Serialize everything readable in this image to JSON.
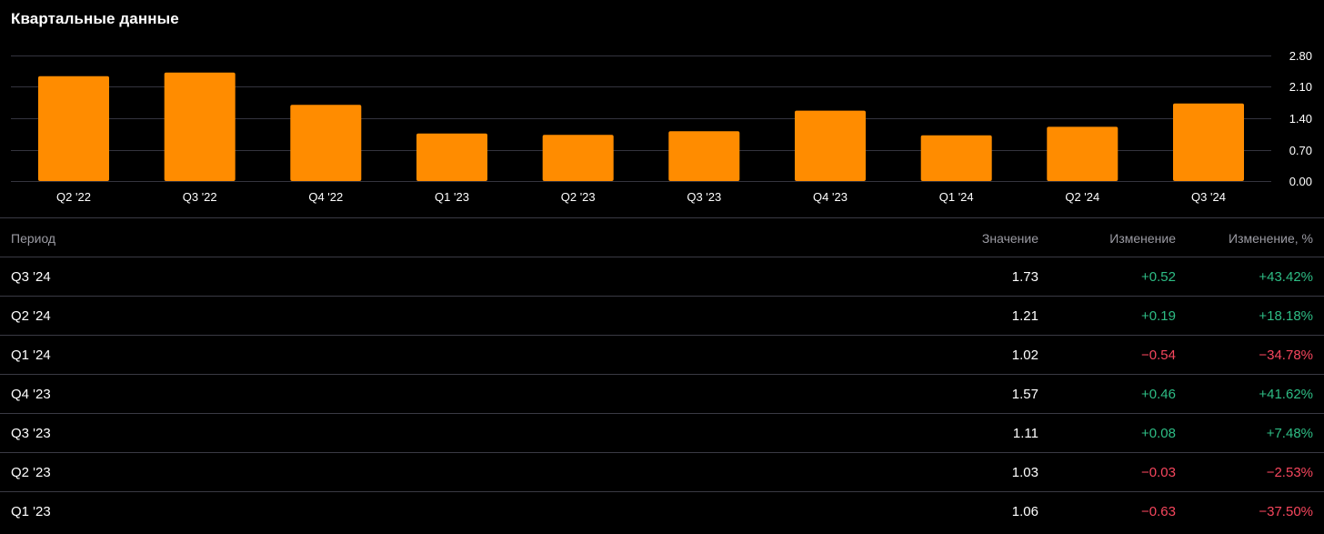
{
  "title": "Квартальные данные",
  "colors": {
    "bar": "#ff8c00",
    "grid": "#34343e",
    "axis_text": "#ffffff",
    "positive": "#2ebd85",
    "negative": "#f6465d"
  },
  "chart_data": {
    "type": "bar",
    "categories": [
      "Q2 '22",
      "Q3 '22",
      "Q4 '22",
      "Q1 '23",
      "Q2 '23",
      "Q3 '23",
      "Q4 '23",
      "Q1 '24",
      "Q2 '24",
      "Q3 '24"
    ],
    "values": [
      2.34,
      2.42,
      1.7,
      1.06,
      1.03,
      1.11,
      1.57,
      1.02,
      1.21,
      1.73
    ],
    "ylim": [
      0,
      2.8
    ],
    "yticks": [
      "0.00",
      "0.70",
      "1.40",
      "2.10",
      "2.80"
    ],
    "ytick_values": [
      0,
      0.7,
      1.4,
      2.1,
      2.8
    ],
    "grid": true,
    "y_axis_side": "right"
  },
  "table": {
    "headers": {
      "period": "Период",
      "value": "Значение",
      "change": "Изменение",
      "change_pct": "Изменение, %"
    },
    "rows": [
      {
        "period": "Q3 '24",
        "value": "1.73",
        "change": "+0.52",
        "change_pct": "+43.42%",
        "dir": "pos"
      },
      {
        "period": "Q2 '24",
        "value": "1.21",
        "change": "+0.19",
        "change_pct": "+18.18%",
        "dir": "pos"
      },
      {
        "period": "Q1 '24",
        "value": "1.02",
        "change": "−0.54",
        "change_pct": "−34.78%",
        "dir": "neg"
      },
      {
        "period": "Q4 '23",
        "value": "1.57",
        "change": "+0.46",
        "change_pct": "+41.62%",
        "dir": "pos"
      },
      {
        "period": "Q3 '23",
        "value": "1.11",
        "change": "+0.08",
        "change_pct": "+7.48%",
        "dir": "pos"
      },
      {
        "period": "Q2 '23",
        "value": "1.03",
        "change": "−0.03",
        "change_pct": "−2.53%",
        "dir": "neg"
      },
      {
        "period": "Q1 '23",
        "value": "1.06",
        "change": "−0.63",
        "change_pct": "−37.50%",
        "dir": "neg"
      }
    ]
  }
}
